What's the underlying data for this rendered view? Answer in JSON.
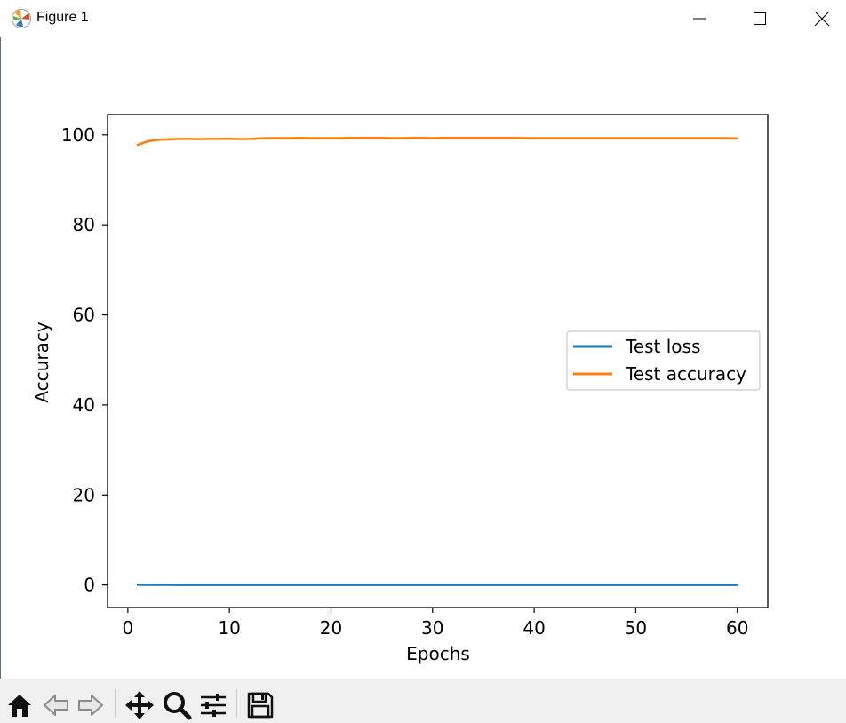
{
  "window": {
    "title": "Figure 1",
    "icons": {
      "app": "matplotlib-logo-icon",
      "minimize": "minimize-icon",
      "maximize": "maximize-icon",
      "close": "close-icon"
    }
  },
  "toolbar": {
    "buttons": [
      {
        "icon": "home-icon"
      },
      {
        "icon": "back-arrow-icon"
      },
      {
        "icon": "forward-arrow-icon"
      },
      {
        "icon": "pan-move-icon"
      },
      {
        "icon": "zoom-magnifier-icon"
      },
      {
        "icon": "configure-subplots-icon"
      },
      {
        "icon": "save-floppy-icon"
      }
    ]
  },
  "chart_data": {
    "type": "line",
    "title": "",
    "xlabel": "Epochs",
    "ylabel": "Accuracy",
    "xlim": [
      -2,
      63
    ],
    "ylim": [
      -5,
      104.5
    ],
    "xticks": [
      0,
      10,
      20,
      30,
      40,
      50,
      60
    ],
    "yticks": [
      0,
      20,
      40,
      60,
      80,
      100
    ],
    "grid": false,
    "legend_position": "center-right",
    "series": [
      {
        "name": "Test loss",
        "color": "#1f77b4",
        "x": [
          1,
          2,
          3,
          4,
          5,
          6,
          7,
          8,
          9,
          10,
          11,
          12,
          13,
          14,
          15,
          16,
          17,
          18,
          19,
          20,
          21,
          22,
          23,
          24,
          25,
          26,
          27,
          28,
          29,
          30,
          31,
          32,
          33,
          34,
          35,
          36,
          37,
          38,
          39,
          40,
          41,
          42,
          43,
          44,
          45,
          46,
          47,
          48,
          49,
          50,
          51,
          52,
          53,
          54,
          55,
          56,
          57,
          58,
          59,
          60
        ],
        "y": [
          0.06,
          0.04,
          0.035,
          0.03,
          0.028,
          0.027,
          0.026,
          0.026,
          0.025,
          0.025,
          0.025,
          0.025,
          0.024,
          0.024,
          0.024,
          0.024,
          0.024,
          0.024,
          0.024,
          0.024,
          0.024,
          0.024,
          0.024,
          0.024,
          0.024,
          0.024,
          0.024,
          0.024,
          0.024,
          0.024,
          0.024,
          0.024,
          0.024,
          0.024,
          0.024,
          0.024,
          0.024,
          0.024,
          0.024,
          0.024,
          0.024,
          0.024,
          0.024,
          0.024,
          0.024,
          0.024,
          0.024,
          0.024,
          0.024,
          0.024,
          0.024,
          0.024,
          0.024,
          0.024,
          0.024,
          0.024,
          0.024,
          0.024,
          0.024,
          0.024
        ]
      },
      {
        "name": "Test accuracy",
        "color": "#ff7f0e",
        "x": [
          1,
          2,
          3,
          4,
          5,
          6,
          7,
          8,
          9,
          10,
          11,
          12,
          13,
          14,
          15,
          16,
          17,
          18,
          19,
          20,
          21,
          22,
          23,
          24,
          25,
          26,
          27,
          28,
          29,
          30,
          31,
          32,
          33,
          34,
          35,
          36,
          37,
          38,
          39,
          40,
          41,
          42,
          43,
          44,
          45,
          46,
          47,
          48,
          49,
          50,
          51,
          52,
          53,
          54,
          55,
          56,
          57,
          58,
          59,
          60
        ],
        "y": [
          97.8,
          98.6,
          98.9,
          99.0,
          99.1,
          99.1,
          99.05,
          99.1,
          99.1,
          99.15,
          99.05,
          99.1,
          99.2,
          99.25,
          99.25,
          99.25,
          99.3,
          99.25,
          99.25,
          99.25,
          99.25,
          99.3,
          99.3,
          99.3,
          99.3,
          99.25,
          99.25,
          99.3,
          99.3,
          99.25,
          99.3,
          99.3,
          99.3,
          99.3,
          99.3,
          99.3,
          99.3,
          99.3,
          99.25,
          99.25,
          99.25,
          99.25,
          99.25,
          99.25,
          99.25,
          99.25,
          99.25,
          99.25,
          99.25,
          99.25,
          99.25,
          99.25,
          99.25,
          99.25,
          99.25,
          99.25,
          99.25,
          99.25,
          99.25,
          99.2
        ]
      }
    ]
  }
}
